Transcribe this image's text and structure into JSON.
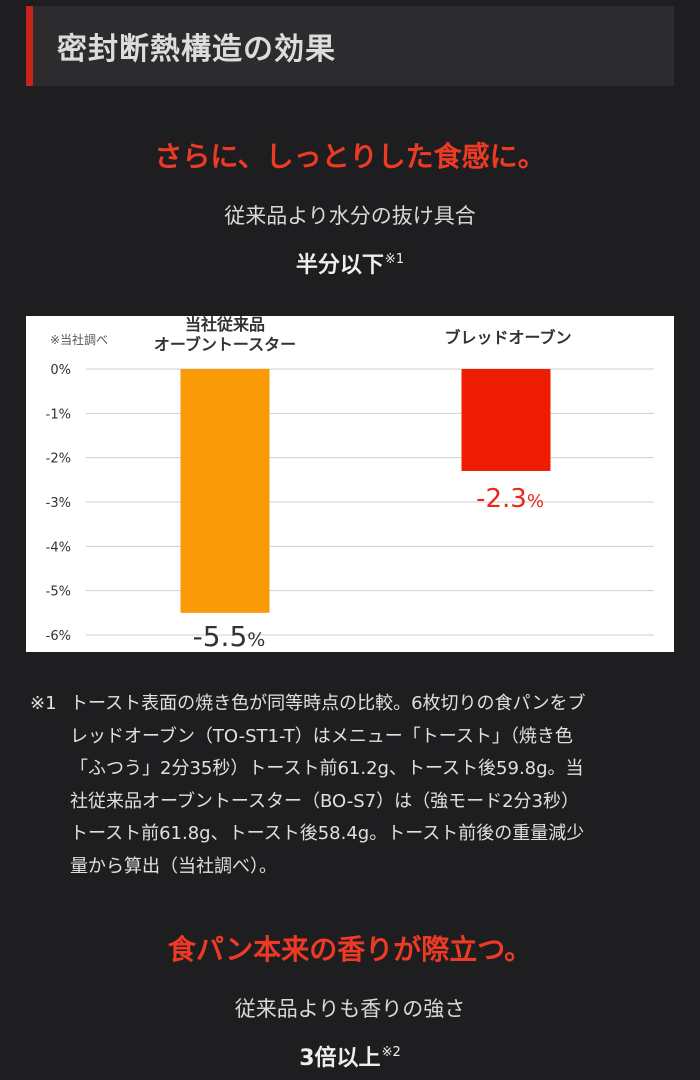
{
  "section": {
    "title": "密封断熱構造の効果"
  },
  "block1": {
    "headline": "さらに、しっとりした食感に。",
    "subline": "従来品より水分の抜け具合",
    "emphasis": "半分以下",
    "emphasis_note": "※1"
  },
  "chart_data": {
    "type": "bar",
    "note": "※当社調べ",
    "categories": [
      "当社従来品オーブントースター",
      "ブレッドオーブン"
    ],
    "category_label_lines": [
      [
        "当社従来品",
        "オーブントースター"
      ],
      [
        "ブレッドオーブン"
      ]
    ],
    "values": [
      -5.5,
      -2.3
    ],
    "value_labels": [
      {
        "number": "-5.5",
        "unit": "%"
      },
      {
        "number": "-2.3",
        "unit": "%"
      }
    ],
    "ylim": [
      -6,
      0
    ],
    "yticks": [
      0,
      -1,
      -2,
      -3,
      -4,
      -5,
      -6
    ],
    "ytick_labels": [
      "0%",
      "-1%",
      "-2%",
      "-3%",
      "-4%",
      "-5%",
      "-6%"
    ],
    "grid": true,
    "colors": [
      "#f99a06",
      "#ee1c03"
    ],
    "value_label_colors": [
      "#333333",
      "#e8281b"
    ],
    "title": "",
    "xlabel": "",
    "ylabel": ""
  },
  "footnote": {
    "mark": "※1",
    "lines": [
      "トースト表面の焼き色が同等時点の比較。6枚切りの食パンをブ",
      "レッドオーブン（TO-ST1-T）はメニュー「トースト」（焼き色",
      "「ふつう」2分35秒）トースト前61.2g、トースト後59.8g。当",
      "社従来品オーブントースター（BO-S7）は（強モード2分3秒）",
      "トースト前61.8g、トースト後58.4g。トースト前後の重量減少",
      "量から算出（当社調べ）。"
    ]
  },
  "block2": {
    "headline": "食パン本来の香りが際立つ。",
    "subline": "従来品よりも香りの強さ",
    "emphasis": "3倍以上",
    "emphasis_note": "※2"
  },
  "colors": {
    "accent_red": "#ee3a24",
    "header_bar": "#c8241b",
    "page_bg": "#1e1e20",
    "header_bg": "#2c2c2e"
  }
}
